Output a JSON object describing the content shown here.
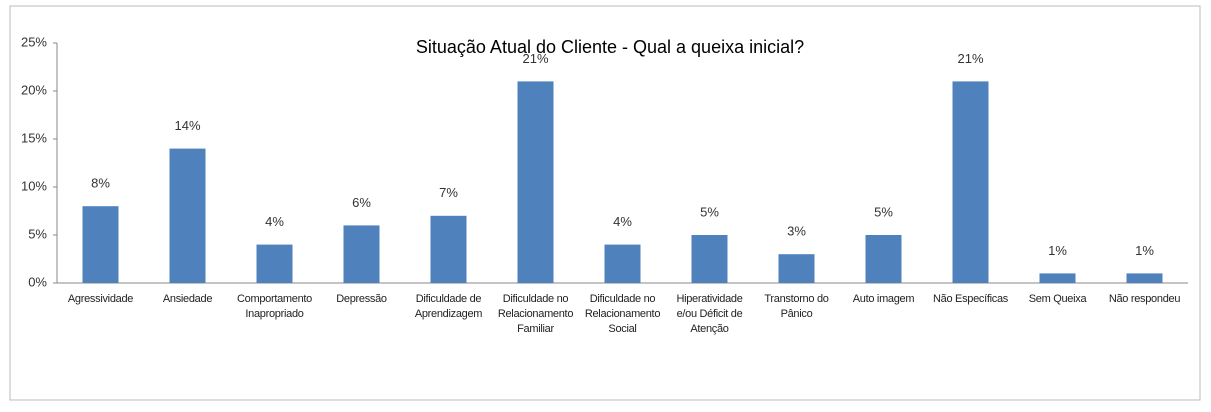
{
  "chart_data": {
    "type": "bar",
    "title": "Situação Atual do Cliente - Qual a queixa inicial?",
    "categories": [
      "Agressividade",
      "Ansiedade",
      "Comportamento Inapropriado",
      "Depressão",
      "Dificuldade de Aprendizagem",
      "Dificuldade no Relacionamento Familiar",
      "Dificuldade no Relacionamento Social",
      "Hiperatividade e/ou Déficit de Atenção",
      "Transtorno do Pânico",
      "Auto imagem",
      "Não Específicas",
      "Sem Queixa",
      "Não respondeu"
    ],
    "values": [
      8,
      14,
      4,
      6,
      7,
      21,
      4,
      5,
      3,
      5,
      21,
      1,
      1
    ],
    "value_labels": [
      "8%",
      "14%",
      "4%",
      "6%",
      "7%",
      "21%",
      "4%",
      "5%",
      "3%",
      "5%",
      "21%",
      "1%",
      "1%"
    ],
    "color": "#4f81bd",
    "ylim": [
      0,
      25
    ],
    "yticks": [
      {
        "value": 0,
        "label": "0%"
      },
      {
        "value": 5,
        "label": "5%"
      },
      {
        "value": 10,
        "label": "10%"
      },
      {
        "value": 15,
        "label": "15%"
      },
      {
        "value": 20,
        "label": "20%"
      },
      {
        "value": 25,
        "label": "25%"
      }
    ],
    "grid": false
  }
}
